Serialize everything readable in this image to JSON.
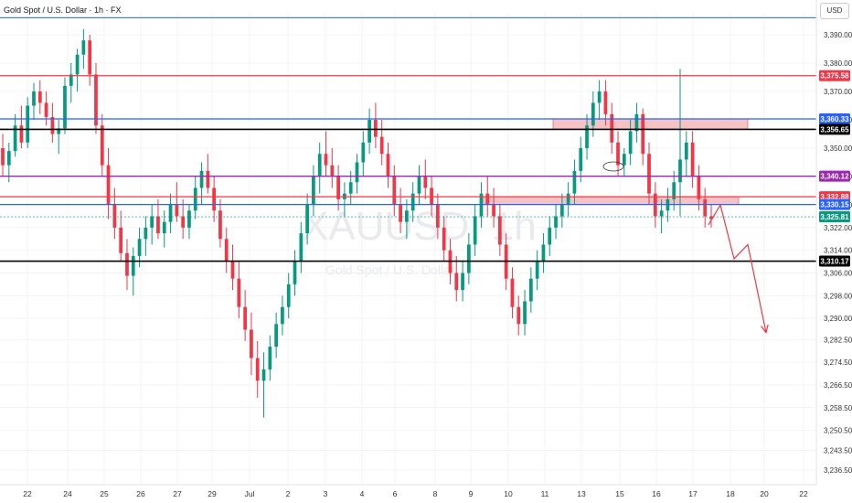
{
  "header": {
    "title": "Gold Spot / U.S. Dollar · 1h · FX",
    "currency_button": "USD"
  },
  "watermark": {
    "symbol": "XAUUSD, 1h",
    "name": "Gold Spot / U.S. Dollar"
  },
  "chart_data": {
    "type": "candlestick",
    "title": "Gold Spot / U.S. Dollar · 1h · FX",
    "ylim": [
      3232,
      3397
    ],
    "y_ticks": [
      "3,390.00",
      "3,380.00",
      "3,370.00",
      "3,360.00",
      "3,350.00",
      "3,340.00",
      "3,330.00",
      "3,322.00",
      "3,314.00",
      "3,306.00",
      "3,298.00",
      "3,290.00",
      "3,282.50",
      "3,274.50",
      "3,266.50",
      "3,258.50",
      "3,250.50",
      "3,243.50",
      "3,236.50"
    ],
    "x_ticks": [
      "22",
      "24",
      "25",
      "26",
      "27",
      "29",
      "Jul",
      "2",
      "3",
      "4",
      "6",
      "8",
      "9",
      "10",
      "11",
      "13",
      "15",
      "16",
      "17",
      "18",
      "20",
      "22"
    ],
    "price_levels": [
      {
        "label": "3,375.58",
        "value": 3375.58,
        "color": "#f23645"
      },
      {
        "label": "3,360.33",
        "value": 3360.33,
        "color": "#2962ff"
      },
      {
        "label": "3,356.65",
        "value": 3356.65,
        "color": "#000000"
      },
      {
        "label": "3,340.12",
        "value": 3340.12,
        "color": "#9c27b0"
      },
      {
        "label": "3,332.88",
        "value": 3332.88,
        "color": "#f23645"
      },
      {
        "label": "3,330.15",
        "value": 3330.15,
        "color": "#2962ff"
      },
      {
        "label": "3,325.81",
        "value": 3325.81,
        "color": "#089981"
      },
      {
        "label": "3,310.17",
        "value": 3310.17,
        "color": "#000000"
      }
    ],
    "top_line": {
      "value": 3396,
      "color": "#2962ff"
    },
    "zones": [
      {
        "name": "upper-supply-zone",
        "x_start": 605,
        "x_end": 818,
        "y_top": 3360.33,
        "y_bottom": 3356.65,
        "color": "#f5b7b9"
      },
      {
        "name": "lower-supply-zone",
        "x_start": 527,
        "x_end": 808,
        "y_top": 3332.88,
        "y_bottom": 3330.15,
        "color": "#f5b7b9"
      }
    ],
    "projection": [
      [
        775,
        3323
      ],
      [
        788,
        3330
      ],
      [
        803,
        3311
      ],
      [
        818,
        3316
      ],
      [
        838,
        3285
      ]
    ],
    "projection_color": "#f23645",
    "candles": [
      [
        3350,
        3355,
        3340,
        3344
      ],
      [
        3344,
        3352,
        3338,
        3349
      ],
      [
        3349,
        3362,
        3347,
        3358
      ],
      [
        3358,
        3365,
        3350,
        3352
      ],
      [
        3352,
        3368,
        3350,
        3365
      ],
      [
        3365,
        3373,
        3360,
        3370
      ],
      [
        3370,
        3374,
        3362,
        3366
      ],
      [
        3366,
        3370,
        3358,
        3361
      ],
      [
        3361,
        3366,
        3352,
        3355
      ],
      [
        3355,
        3360,
        3348,
        3357
      ],
      [
        3357,
        3375,
        3355,
        3372
      ],
      [
        3372,
        3380,
        3366,
        3376
      ],
      [
        3376,
        3385,
        3370,
        3383
      ],
      [
        3383,
        3392,
        3378,
        3388
      ],
      [
        3388,
        3390,
        3372,
        3376
      ],
      [
        3376,
        3380,
        3355,
        3358
      ],
      [
        3358,
        3362,
        3340,
        3344
      ],
      [
        3344,
        3350,
        3325,
        3330
      ],
      [
        3330,
        3336,
        3318,
        3322
      ],
      [
        3322,
        3328,
        3310,
        3313
      ],
      [
        3313,
        3318,
        3300,
        3305
      ],
      [
        3305,
        3315,
        3298,
        3312
      ],
      [
        3312,
        3322,
        3308,
        3318
      ],
      [
        3318,
        3326,
        3312,
        3322
      ],
      [
        3322,
        3330,
        3316,
        3326
      ],
      [
        3326,
        3332,
        3318,
        3320
      ],
      [
        3320,
        3328,
        3315,
        3324
      ],
      [
        3324,
        3334,
        3320,
        3330
      ],
      [
        3330,
        3338,
        3324,
        3326
      ],
      [
        3326,
        3332,
        3318,
        3322
      ],
      [
        3322,
        3330,
        3318,
        3328
      ],
      [
        3328,
        3340,
        3325,
        3336
      ],
      [
        3336,
        3345,
        3330,
        3342
      ],
      [
        3342,
        3348,
        3334,
        3336
      ],
      [
        3336,
        3340,
        3324,
        3328
      ],
      [
        3328,
        3332,
        3315,
        3318
      ],
      [
        3318,
        3322,
        3306,
        3310
      ],
      [
        3310,
        3316,
        3300,
        3304
      ],
      [
        3304,
        3310,
        3290,
        3294
      ],
      [
        3294,
        3300,
        3282,
        3286
      ],
      [
        3286,
        3292,
        3270,
        3276
      ],
      [
        3276,
        3282,
        3262,
        3268
      ],
      [
        3268,
        3278,
        3255,
        3272
      ],
      [
        3272,
        3284,
        3268,
        3280
      ],
      [
        3280,
        3292,
        3276,
        3288
      ],
      [
        3288,
        3298,
        3284,
        3294
      ],
      [
        3294,
        3306,
        3290,
        3302
      ],
      [
        3302,
        3314,
        3298,
        3310
      ],
      [
        3310,
        3324,
        3306,
        3320
      ],
      [
        3320,
        3334,
        3316,
        3330
      ],
      [
        3330,
        3344,
        3326,
        3340
      ],
      [
        3340,
        3352,
        3334,
        3348
      ],
      [
        3348,
        3356,
        3340,
        3344
      ],
      [
        3344,
        3350,
        3336,
        3340
      ],
      [
        3340,
        3344,
        3328,
        3332
      ],
      [
        3332,
        3338,
        3326,
        3334
      ],
      [
        3334,
        3342,
        3330,
        3338
      ],
      [
        3338,
        3348,
        3334,
        3345
      ],
      [
        3345,
        3356,
        3340,
        3352
      ],
      [
        3352,
        3364,
        3348,
        3360
      ],
      [
        3360,
        3366,
        3350,
        3354
      ],
      [
        3354,
        3360,
        3344,
        3348
      ],
      [
        3348,
        3352,
        3336,
        3340
      ],
      [
        3340,
        3344,
        3326,
        3330
      ],
      [
        3330,
        3336,
        3320,
        3324
      ],
      [
        3324,
        3332,
        3318,
        3328
      ],
      [
        3328,
        3338,
        3324,
        3334
      ],
      [
        3334,
        3344,
        3330,
        3340
      ],
      [
        3340,
        3346,
        3332,
        3336
      ],
      [
        3336,
        3340,
        3326,
        3330
      ],
      [
        3330,
        3334,
        3318,
        3322
      ],
      [
        3322,
        3326,
        3310,
        3314
      ],
      [
        3314,
        3318,
        3302,
        3306
      ],
      [
        3306,
        3312,
        3296,
        3300
      ],
      [
        3300,
        3310,
        3296,
        3306
      ],
      [
        3306,
        3320,
        3302,
        3316
      ],
      [
        3316,
        3330,
        3312,
        3326
      ],
      [
        3326,
        3338,
        3322,
        3334
      ],
      [
        3334,
        3340,
        3326,
        3330
      ],
      [
        3330,
        3336,
        3322,
        3326
      ],
      [
        3326,
        3330,
        3312,
        3316
      ],
      [
        3316,
        3320,
        3300,
        3304
      ],
      [
        3304,
        3308,
        3290,
        3294
      ],
      [
        3294,
        3298,
        3284,
        3288
      ],
      [
        3288,
        3300,
        3284,
        3296
      ],
      [
        3296,
        3308,
        3292,
        3304
      ],
      [
        3304,
        3314,
        3300,
        3310
      ],
      [
        3310,
        3320,
        3306,
        3316
      ],
      [
        3316,
        3326,
        3312,
        3322
      ],
      [
        3322,
        3330,
        3318,
        3326
      ],
      [
        3326,
        3334,
        3322,
        3330
      ],
      [
        3330,
        3338,
        3326,
        3334
      ],
      [
        3334,
        3346,
        3330,
        3342
      ],
      [
        3342,
        3354,
        3338,
        3350
      ],
      [
        3350,
        3362,
        3346,
        3358
      ],
      [
        3358,
        3370,
        3354,
        3366
      ],
      [
        3366,
        3374,
        3360,
        3370
      ],
      [
        3370,
        3374,
        3358,
        3362
      ],
      [
        3362,
        3366,
        3348,
        3352
      ],
      [
        3352,
        3356,
        3340,
        3344
      ],
      [
        3344,
        3350,
        3340,
        3348
      ],
      [
        3348,
        3360,
        3344,
        3356
      ],
      [
        3356,
        3366,
        3352,
        3362
      ],
      [
        3362,
        3364,
        3344,
        3348
      ],
      [
        3348,
        3352,
        3330,
        3334
      ],
      [
        3334,
        3338,
        3322,
        3326
      ],
      [
        3326,
        3332,
        3320,
        3328
      ],
      [
        3328,
        3336,
        3324,
        3332
      ],
      [
        3332,
        3342,
        3328,
        3338
      ],
      [
        3338,
        3378,
        3326,
        3346
      ],
      [
        3346,
        3356,
        3340,
        3352
      ],
      [
        3352,
        3356,
        3336,
        3340
      ],
      [
        3340,
        3344,
        3328,
        3332
      ],
      [
        3332,
        3336,
        3322,
        3326
      ],
      [
        3326,
        3330,
        3322,
        3325
      ]
    ]
  }
}
